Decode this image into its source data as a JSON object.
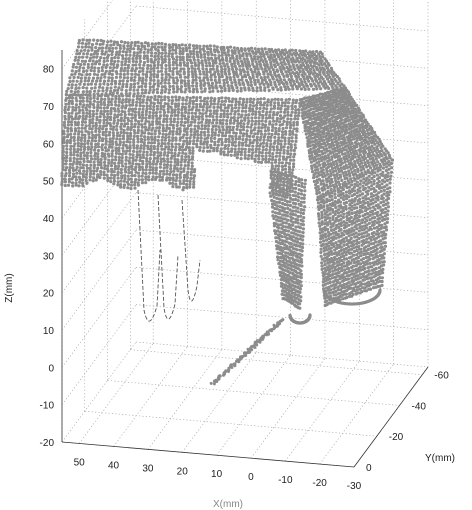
{
  "chart_data": {
    "type": "scatter",
    "projection": "3d",
    "title": "",
    "zlabel": "Z(mm)",
    "ylabel": "Y(mm)",
    "xlabel": "X(mm)",
    "grid": true,
    "z_ticks": [
      80,
      70,
      60,
      50,
      40,
      30,
      20,
      10,
      0,
      -10,
      -20
    ],
    "x_ticks": [
      50,
      40,
      30,
      20,
      10,
      0,
      -10,
      -20,
      -30
    ],
    "y_ticks": [
      -60,
      -40,
      -20,
      0
    ],
    "zlim": [
      -20,
      85
    ],
    "xlim": [
      -30,
      55
    ],
    "ylim": [
      -65,
      0
    ],
    "point_color": "#8c8c8c",
    "trace_color": "#555555",
    "series": [
      {
        "name": "",
        "description": "dense point cloud surface, grey dots"
      }
    ]
  }
}
